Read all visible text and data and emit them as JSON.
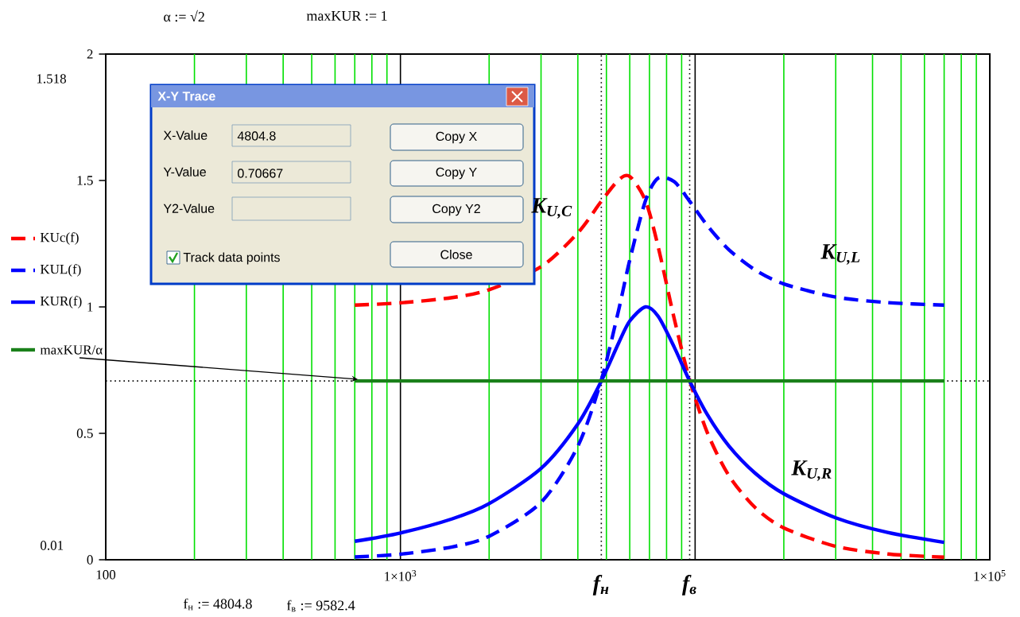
{
  "chart_data": {
    "type": "line",
    "x": [
      700,
      1000,
      1500,
      2000,
      3000,
      4000,
      4805,
      5500,
      6000,
      6785,
      7500,
      8500,
      9582,
      11000,
      13000,
      16000,
      20000,
      30000,
      45000,
      70000
    ],
    "series": [
      {
        "name": "KUc(f)",
        "color": "#ff0000",
        "line_style": "dashed",
        "values": [
          1.007,
          1.016,
          1.037,
          1.068,
          1.159,
          1.293,
          1.418,
          1.502,
          1.516,
          1.42,
          1.236,
          0.952,
          0.711,
          0.503,
          0.334,
          0.206,
          0.126,
          0.053,
          0.023,
          0.01
        ]
      },
      {
        "name": "KUL(f)",
        "color": "#0000ff",
        "line_style": "dashed",
        "values": [
          0.011,
          0.022,
          0.051,
          0.093,
          0.227,
          0.449,
          0.711,
          0.987,
          1.185,
          1.42,
          1.51,
          1.495,
          1.418,
          1.322,
          1.227,
          1.146,
          1.091,
          1.039,
          1.017,
          1.007
        ]
      },
      {
        "name": "KUR(f)",
        "color": "#0000ff",
        "line_style": "solid",
        "values": [
          0.073,
          0.106,
          0.162,
          0.222,
          0.361,
          0.537,
          0.707,
          0.857,
          0.944,
          1.0,
          0.962,
          0.84,
          0.707,
          0.574,
          0.451,
          0.342,
          0.261,
          0.166,
          0.108,
          0.069
        ]
      },
      {
        "name": "maxKUR/α",
        "color": "#1a801a",
        "line_style": "solid",
        "x": [
          700,
          70000
        ],
        "values": [
          0.707,
          0.707
        ]
      }
    ],
    "log": "x",
    "xlim": [
      100,
      100000
    ],
    "xticks": [
      100,
      {
        "value": 200,
        "label": null
      },
      {
        "value": 300,
        "label": null
      },
      {
        "value": 400,
        "label": null
      },
      {
        "value": 500,
        "label": null
      },
      {
        "value": 600,
        "label": null
      },
      {
        "value": 700,
        "label": null
      },
      {
        "value": 800,
        "label": null
      },
      {
        "value": 900,
        "label": null
      },
      {
        "value": 1000,
        "label": "1×10$^{3}$"
      },
      {
        "value": 2000,
        "label": null
      },
      {
        "value": 3000,
        "label": null
      },
      {
        "value": 4000,
        "label": null
      },
      {
        "value": 5000,
        "label": null
      },
      {
        "value": 6000,
        "label": null
      },
      {
        "value": 7000,
        "label": null
      },
      {
        "value": 8000,
        "label": null
      },
      {
        "value": 9000,
        "label": null
      },
      {
        "value": 10000,
        "label": null
      },
      {
        "value": 20000,
        "label": null
      },
      {
        "value": 30000,
        "label": null
      },
      {
        "value": 40000,
        "label": null
      },
      {
        "value": 50000,
        "label": null
      },
      {
        "value": 60000,
        "label": null
      },
      {
        "value": 70000,
        "label": null
      },
      {
        "value": 80000,
        "label": null
      },
      {
        "value": 90000,
        "label": null
      },
      {
        "value": 100000,
        "label": "1×10$^{5}$"
      }
    ],
    "ylim": [
      0,
      2
    ],
    "yticks": [
      0,
      0.5,
      1,
      1.5,
      2
    ],
    "grid": "x",
    "legend": "left",
    "ref_lines": [
      {
        "axis": "y",
        "value": 0.707,
        "line_style": "dotted"
      },
      {
        "axis": "x",
        "value": 4804.8,
        "label": "f$_{н}$",
        "line_style": "dotted"
      },
      {
        "axis": "x",
        "value": 9582.4,
        "label": "f$_{в}$",
        "line_style": "dotted"
      }
    ],
    "annotations": [
      "α := √2",
      "maxKUR := 1",
      "f$_{н}$ := 4804.8",
      "f$_{в}$ := 9582.4",
      "1.518",
      "0.01",
      "X-Y Trace",
      "X-Value",
      "4804.8",
      "Y-Value",
      "0.70667",
      "Y2-Value",
      "Copy X",
      "Copy Y",
      "Copy Y2",
      "Track data points",
      "Close",
      "K$_{U,C}$",
      "K$_{U,L}$",
      "K$_{U,R}$"
    ]
  }
}
